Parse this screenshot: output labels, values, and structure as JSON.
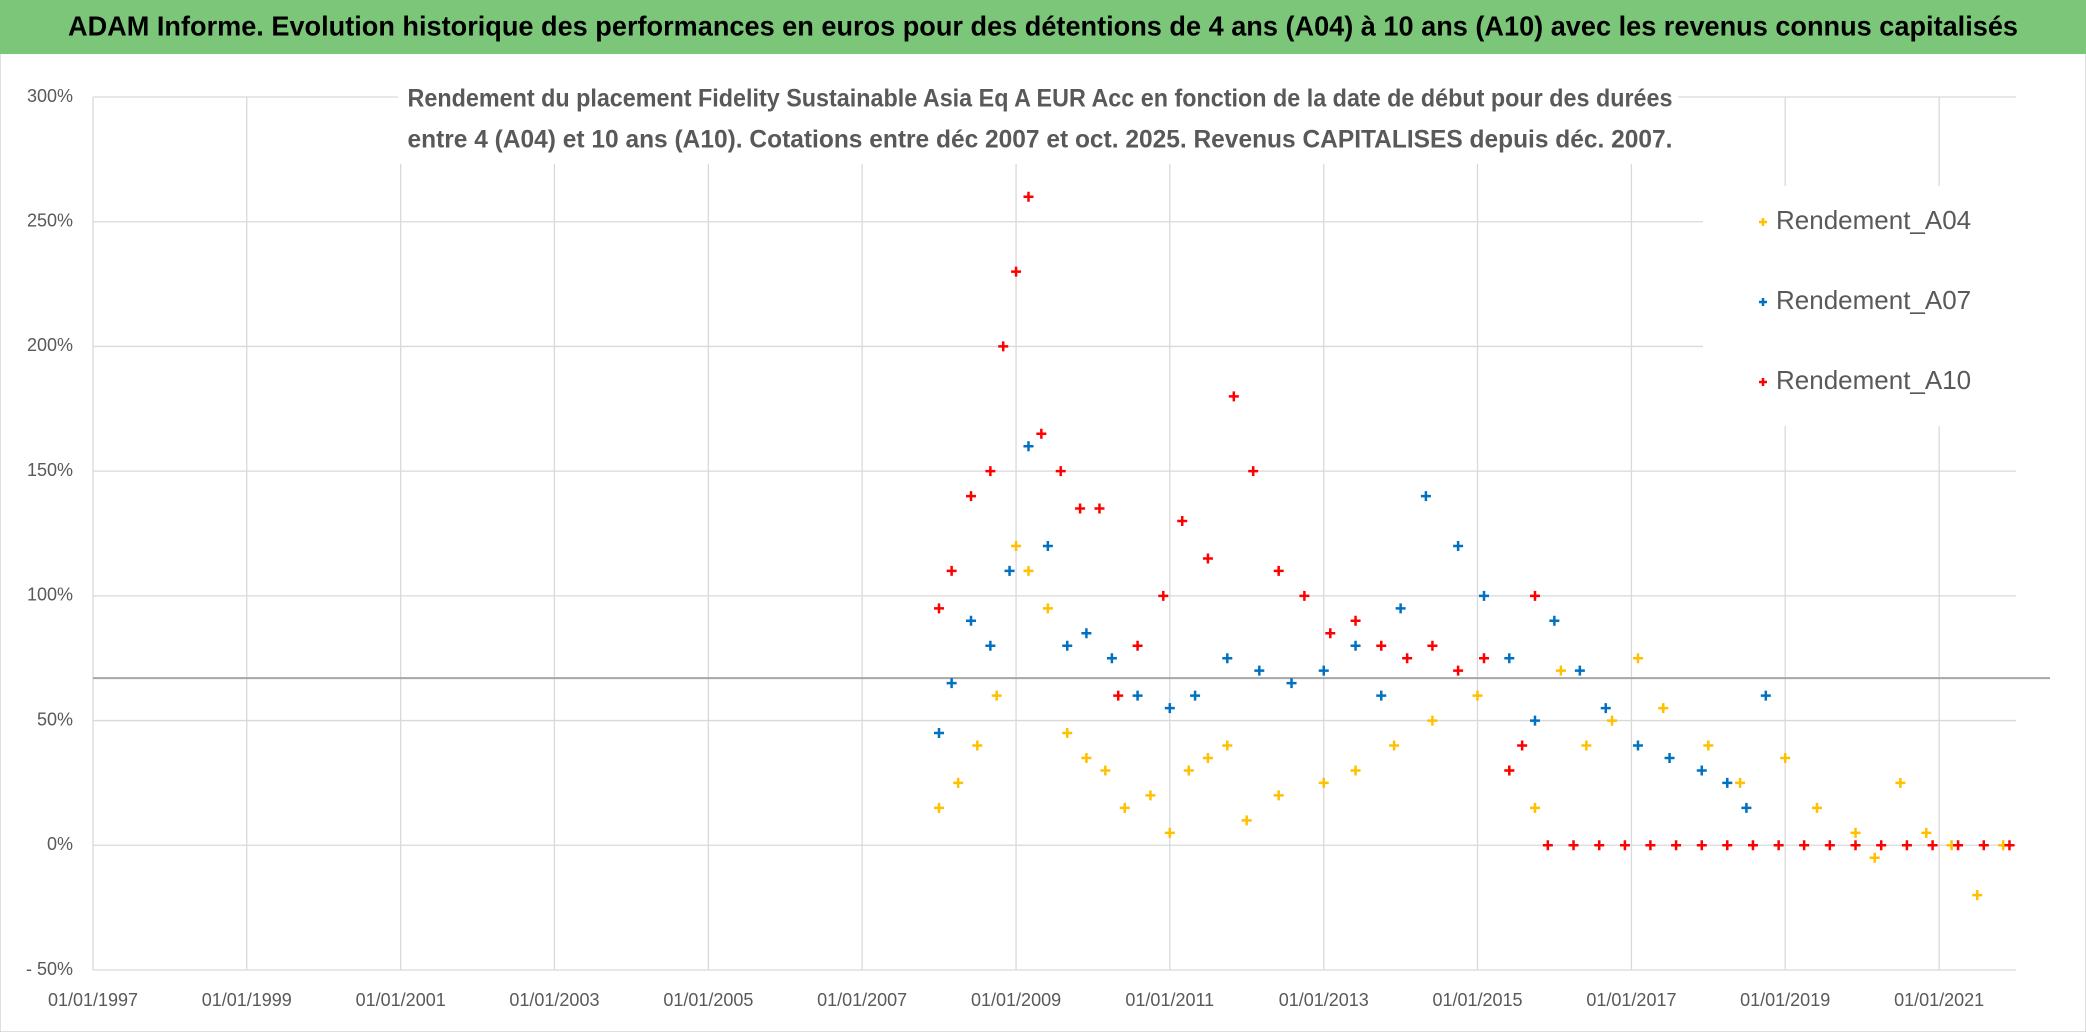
{
  "header": {
    "title": "ADAM Informe. Evolution historique des performances en euros pour des détentions de 4 ans (A04) à 10 ans (A10) avec les revenus connus capitalisés"
  },
  "chart_data": {
    "type": "scatter",
    "title": [
      "Rendement du placement Fidelity Sustainable Asia Eq A EUR Acc en fonction de la date de début pour des durées",
      "entre 4 (A04) et 10 ans (A10). Cotations entre déc 2007 et oct. 2025. Revenus CAPITALISES depuis déc. 2007."
    ],
    "xlim": [
      "01/01/1997",
      "01/01/2022"
    ],
    "xticks": [
      "01/01/1997",
      "01/01/1999",
      "01/01/2001",
      "01/01/2003",
      "01/01/2005",
      "01/01/2007",
      "01/01/2009",
      "01/01/2011",
      "01/01/2013",
      "01/01/2015",
      "01/01/2017",
      "01/01/2019",
      "01/01/2021"
    ],
    "ylim": [
      -50,
      300
    ],
    "yticks": [
      {
        "value": -50,
        "label": "- 50%"
      },
      {
        "value": 0,
        "label": "0%"
      },
      {
        "value": 50,
        "label": "50%"
      },
      {
        "value": 100,
        "label": "100%"
      },
      {
        "value": 150,
        "label": "150%"
      },
      {
        "value": 200,
        "label": "200%"
      },
      {
        "value": 250,
        "label": "250%"
      },
      {
        "value": 300,
        "label": "300%"
      }
    ],
    "grid": true,
    "reference_line": 67,
    "legend": "upper right",
    "series": [
      {
        "name": "Rendement_A04",
        "color": "#ffc000",
        "x": [
          "01/01/2008",
          "01/04/2008",
          "01/07/2008",
          "01/10/2008",
          "01/01/2009",
          "01/03/2009",
          "01/06/2009",
          "01/09/2009",
          "01/12/2009",
          "01/03/2010",
          "01/06/2010",
          "01/10/2010",
          "01/01/2011",
          "01/04/2011",
          "01/07/2011",
          "01/10/2011",
          "01/01/2012",
          "01/06/2012",
          "01/01/2013",
          "01/06/2013",
          "01/12/2013",
          "01/06/2014",
          "01/01/2015",
          "01/06/2015",
          "01/10/2015",
          "01/02/2016",
          "01/06/2016",
          "01/10/2016",
          "01/02/2017",
          "01/06/2017",
          "01/01/2018",
          "01/06/2018",
          "01/01/2019",
          "01/06/2019",
          "01/12/2019",
          "01/03/2020",
          "01/07/2020",
          "01/11/2020",
          "01/03/2021",
          "01/07/2021",
          "01/11/2021"
        ],
        "values": [
          15,
          25,
          40,
          60,
          120,
          110,
          95,
          45,
          35,
          30,
          15,
          20,
          5,
          30,
          35,
          40,
          10,
          20,
          25,
          30,
          40,
          50,
          60,
          30,
          15,
          70,
          40,
          50,
          75,
          55,
          40,
          25,
          35,
          15,
          5,
          -5,
          25,
          5,
          0,
          -20,
          0
        ]
      },
      {
        "name": "Rendement_A07",
        "color": "#0070c0",
        "x": [
          "01/01/2008",
          "01/03/2008",
          "01/06/2008",
          "01/09/2008",
          "01/12/2008",
          "01/03/2009",
          "01/06/2009",
          "01/09/2009",
          "01/12/2009",
          "01/04/2010",
          "01/08/2010",
          "01/01/2011",
          "01/05/2011",
          "01/10/2011",
          "01/03/2012",
          "01/08/2012",
          "01/01/2013",
          "01/06/2013",
          "01/10/2013",
          "01/01/2014",
          "01/05/2014",
          "01/10/2014",
          "01/02/2015",
          "01/06/2015",
          "01/10/2015",
          "01/01/2016",
          "01/05/2016",
          "01/09/2016",
          "01/02/2017",
          "01/07/2017",
          "01/12/2017",
          "01/04/2018",
          "01/07/2018",
          "01/10/2018"
        ],
        "values": [
          45,
          65,
          90,
          80,
          110,
          160,
          120,
          80,
          85,
          75,
          60,
          55,
          60,
          75,
          70,
          65,
          70,
          80,
          60,
          95,
          140,
          120,
          100,
          75,
          50,
          90,
          70,
          55,
          40,
          35,
          30,
          25,
          15,
          60
        ]
      },
      {
        "name": "Rendement_A10",
        "color": "#ff0000",
        "x": [
          "01/01/2008",
          "01/03/2008",
          "01/06/2008",
          "01/09/2008",
          "01/11/2008",
          "01/01/2009",
          "01/03/2009",
          "01/05/2009",
          "01/08/2009",
          "01/11/2009",
          "01/02/2010",
          "01/05/2010",
          "01/08/2010",
          "01/12/2010",
          "01/03/2011",
          "01/07/2011",
          "01/11/2011",
          "01/02/2012",
          "01/06/2012",
          "01/10/2012",
          "01/02/2013",
          "01/06/2013",
          "01/10/2013",
          "01/02/2014",
          "01/06/2014",
          "01/10/2014",
          "01/02/2015",
          "01/06/2015",
          "01/08/2015",
          "01/10/2015",
          "01/12/2015",
          "01/04/2016",
          "01/08/2016",
          "01/12/2016",
          "01/04/2017",
          "01/08/2017",
          "01/12/2017",
          "01/04/2018",
          "01/08/2018",
          "01/12/2018",
          "01/04/2019",
          "01/08/2019",
          "01/12/2019",
          "01/04/2020",
          "01/08/2020",
          "01/12/2020",
          "01/04/2021",
          "01/08/2021",
          "01/12/2021"
        ],
        "values": [
          95,
          110,
          140,
          150,
          200,
          230,
          260,
          165,
          150,
          135,
          135,
          60,
          80,
          100,
          130,
          115,
          180,
          150,
          110,
          100,
          85,
          90,
          80,
          75,
          80,
          70,
          75,
          30,
          40,
          100,
          0,
          0,
          0,
          0,
          0,
          0,
          0,
          0,
          0,
          0,
          0,
          0,
          0,
          0,
          0,
          0,
          0,
          0,
          0
        ]
      }
    ]
  }
}
